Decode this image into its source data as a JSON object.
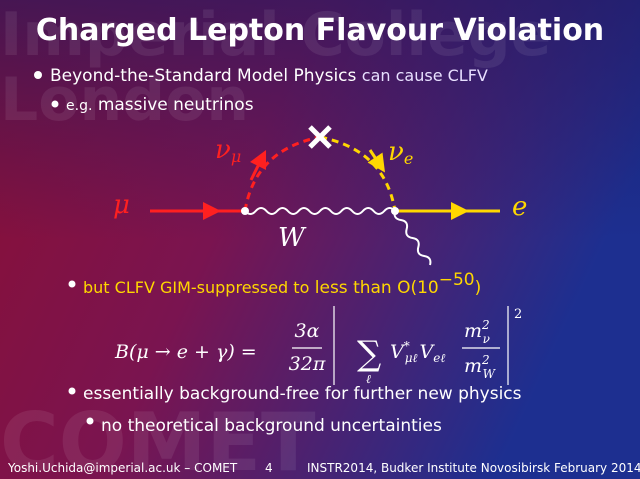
{
  "watermark": {
    "top": "Imperial College",
    "middle": "London",
    "bottom": "COMET"
  },
  "title": "Charged Lepton Flavour Violation",
  "bullets": [
    {
      "strong": "Beyond-the-Standard Model Physics",
      "rest": "can cause CLFV"
    },
    {
      "lead": "e.g.",
      "strong": "massive neutrinos"
    },
    {
      "lead": "but CLFV GIM-suppressed to",
      "strong": "less than O(10",
      "sup": "−50",
      "close": ")"
    },
    {
      "text": "essentially background-free for further new physics"
    },
    {
      "text": "no theoretical background uncertainties"
    }
  ],
  "diagram": {
    "muon": "μ",
    "nu_mu": "ν",
    "nu_mu_sub": "μ",
    "nu_e": "ν",
    "nu_e_sub": "e",
    "electron": "e",
    "w": "W"
  },
  "formula": {
    "lhs": "B(μ → e + γ) =",
    "num": "3α",
    "den": "32π",
    "sum": "∑",
    "sum_sub": "ℓ",
    "v1": "V",
    "v1_sup": "*",
    "v1_sub": "μℓ",
    "v2": "V",
    "v2_sub": "eℓ",
    "mnum": "m",
    "mnum_sup": "2",
    "mnum_sub": "ν",
    "mden": "m",
    "mden_sup": "2",
    "mden_sub": "W",
    "power": "2"
  },
  "footer": {
    "left": "Yoshi.Uchida@imperial.ac.uk – COMET",
    "page": "4",
    "right": "INSTR2014, Budker Institute Novosibirsk February 2014"
  }
}
